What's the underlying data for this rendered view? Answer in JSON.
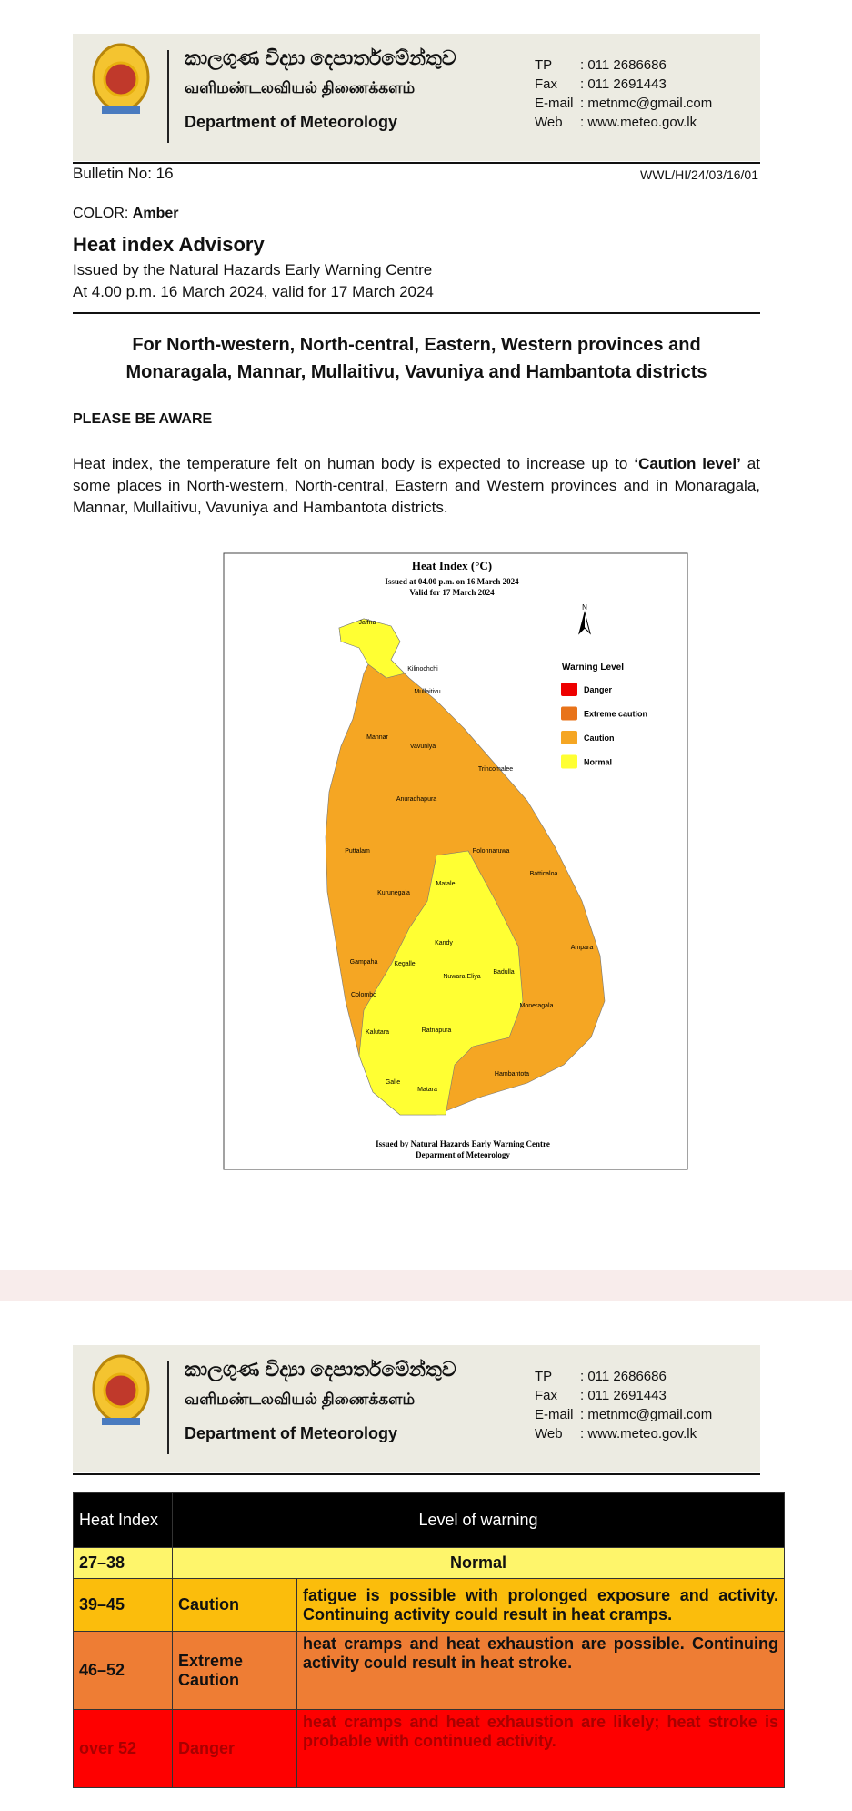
{
  "header": {
    "sinhala": "කාලගුණ විද්‍යා දෙපාර්තමේන්තුව",
    "tamil": "வளிமண்டலவியல் திணைக்களம்",
    "english": "Department of Meteorology",
    "contacts": [
      {
        "label": "TP",
        "value": ": 011 2686686"
      },
      {
        "label": "Fax",
        "value": ": 011 2691443"
      },
      {
        "label": "E-mail",
        "value": ": metnmc@gmail.com"
      },
      {
        "label": "Web",
        "value": ": www.meteo.gov.lk"
      }
    ]
  },
  "bulletin": {
    "number": "Bulletin No: 16",
    "reference": "WWL/HI/24/03/16/01"
  },
  "color": {
    "label": "COLOR:",
    "value": "Amber"
  },
  "title": "Heat index Advisory",
  "issued_by": "Issued by the Natural Hazards Early Warning Centre",
  "issued_at": "At 4.00 p.m. 16 March 2024, valid for 17 March 2024",
  "region": "For North-western, North-central, Eastern, Western provinces and Monaragala, Mannar, Mullaitivu, Vavuniya and Hambantota districts",
  "aware": "PLEASE BE AWARE",
  "body": {
    "before": "Heat index, the temperature felt on human body is expected to increase up to ",
    "emphasis": "‘Caution level’",
    "after": " at some places in North-western, North-central, Eastern and Western provinces and in Monaragala, Mannar, Mullaitivu, Vavuniya and Hambantota districts."
  },
  "map": {
    "title": "Heat Index (°C)",
    "issued": "Issued at 04.00 p.m. on 16 March 2024",
    "valid": "Valid for  17 March 2024",
    "north": "N",
    "legend_title": "Warning Level",
    "legend": [
      {
        "label": "Danger",
        "color": "#ee0000"
      },
      {
        "label": "Extreme caution",
        "color": "#e8731a"
      },
      {
        "label": "Caution",
        "color": "#f5a623"
      },
      {
        "label": "Normal",
        "color": "#ffff33"
      }
    ],
    "labels": [
      "Jaffna",
      "Kilinochchi",
      "Mullaitivu",
      "Mannar",
      "Vavuniya",
      "Trincomalee",
      "Anuradhapura",
      "Puttalam",
      "Polonnaruwa",
      "Batticaloa",
      "Matale",
      "Kurunegala",
      "Kandy",
      "Ampara",
      "Gampaha",
      "Kegalle",
      "Nuwara Eliya",
      "Badulla",
      "Colombo",
      "Moneragala",
      "Kalutara",
      "Ratnapura",
      "Hambantota",
      "Galle",
      "Matara"
    ],
    "footer": "Issued by Natural Hazards Early Warning Centre",
    "footer2": "Deparment of Meteorology"
  },
  "table": {
    "header": [
      "Heat Index",
      "Level of warning"
    ],
    "rows": [
      [
        "27–38",
        "Normal"
      ],
      [
        "39–45",
        "Caution",
        "fatigue is possible with prolonged exposure and activity. Continuing activity could result in heat cramps."
      ],
      [
        "46–52",
        "Extreme Caution",
        "heat cramps and heat exhaustion are possible. Continuing activity could result in heat stroke."
      ],
      [
        "over 52",
        "Danger",
        "heat cramps and heat exhaustion are likely; heat stroke is probable with continued activity."
      ]
    ]
  }
}
